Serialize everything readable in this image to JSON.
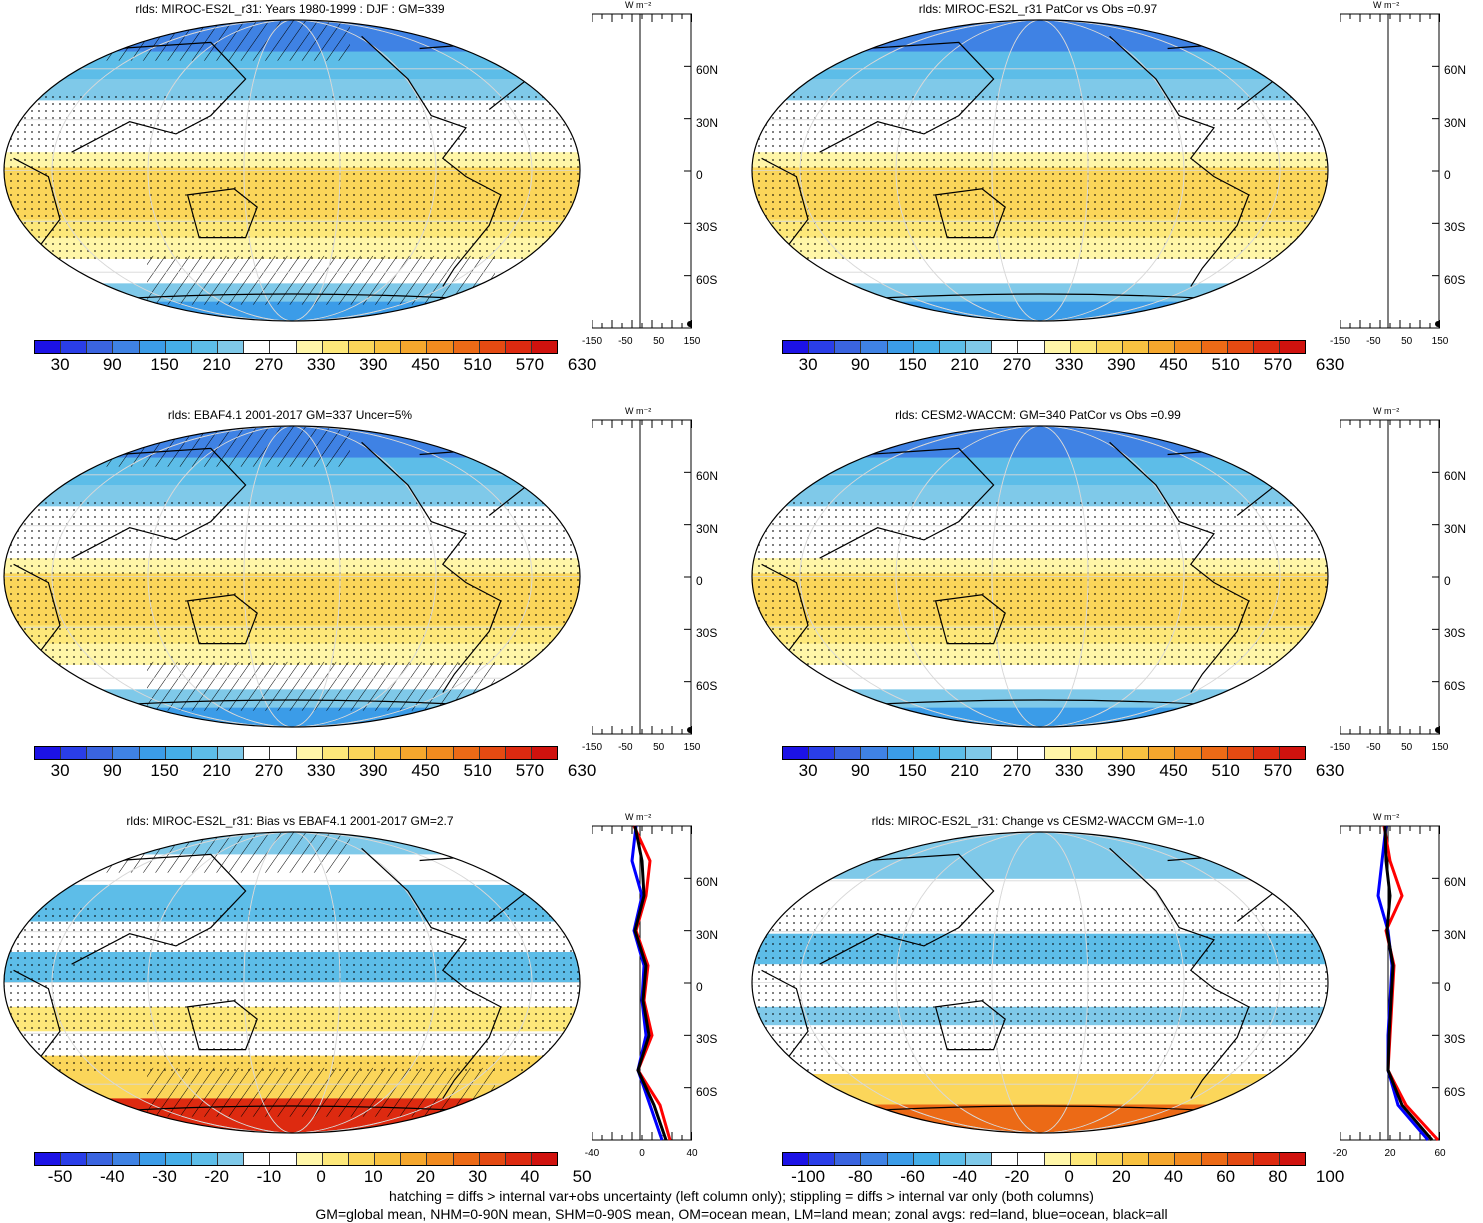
{
  "panels": [
    {
      "title": "rlds: MIROC-ES2L_r31: Years 1980-1999 : DJF : GM=339",
      "zonal": {
        "unit": "W m⁻²",
        "xticks": [
          "-150",
          "-50",
          "50",
          "150"
        ]
      },
      "colorbar": {
        "labels": [
          "30",
          "90",
          "150",
          "210",
          "270",
          "330",
          "390",
          "450",
          "510",
          "570",
          "630"
        ]
      }
    },
    {
      "title": "rlds: MIROC-ES2L_r31 PatCor vs Obs =0.97",
      "zonal": {
        "unit": "W m⁻²",
        "xticks": [
          "-150",
          "-50",
          "50",
          "150"
        ]
      },
      "colorbar": {
        "labels": [
          "30",
          "90",
          "150",
          "210",
          "270",
          "330",
          "390",
          "450",
          "510",
          "570",
          "630"
        ]
      }
    },
    {
      "title": "rlds: EBAF4.1 2001-2017 GM=337 Uncer=5%",
      "zonal": {
        "unit": "W m⁻²",
        "xticks": [
          "-150",
          "-50",
          "50",
          "150"
        ]
      },
      "colorbar": {
        "labels": [
          "30",
          "90",
          "150",
          "210",
          "270",
          "330",
          "390",
          "450",
          "510",
          "570",
          "630"
        ]
      }
    },
    {
      "title": "rlds: CESM2-WACCM: GM=340 PatCor vs Obs =0.99",
      "zonal": {
        "unit": "W m⁻²",
        "xticks": [
          "-150",
          "-50",
          "50",
          "150"
        ]
      },
      "colorbar": {
        "labels": [
          "30",
          "90",
          "150",
          "210",
          "270",
          "330",
          "390",
          "450",
          "510",
          "570",
          "630"
        ]
      }
    },
    {
      "title": "rlds: MIROC-ES2L_r31: Bias vs EBAF4.1 2001-2017 GM=2.7",
      "zonal": {
        "unit": "W m⁻²",
        "xticks": [
          "-40",
          "0",
          "40"
        ]
      },
      "colorbar": {
        "labels": [
          "-50",
          "-40",
          "-30",
          "-20",
          "-10",
          "0",
          "10",
          "20",
          "30",
          "40",
          "50"
        ]
      }
    },
    {
      "title": "rlds: MIROC-ES2L_r31: Change vs CESM2-WACCM GM=-1.0",
      "zonal": {
        "unit": "W m⁻²",
        "xticks": [
          "-20",
          "20",
          "60"
        ]
      },
      "colorbar": {
        "labels": [
          "-100",
          "-80",
          "-60",
          "-40",
          "-20",
          "0",
          "20",
          "40",
          "60",
          "80",
          "100"
        ]
      }
    }
  ],
  "lat_labels": [
    "60N",
    "30N",
    "0",
    "30S",
    "60S"
  ],
  "colors": {
    "palette": [
      "#1c12e6",
      "#2a3ee8",
      "#3a64e0",
      "#3f82e4",
      "#3b9ce8",
      "#45aee8",
      "#5dbde8",
      "#7fc9e9",
      "#ffffff",
      "#ffffff",
      "#fff6a8",
      "#fde87a",
      "#fbd65a",
      "#f8c241",
      "#f5a72d",
      "#f18b1f",
      "#ec6a16",
      "#e44a12",
      "#dd2a10",
      "#d0120e"
    ],
    "zonal_land": "#ff0000",
    "zonal_ocean": "#0000ff",
    "zonal_all": "#000000"
  },
  "footer": {
    "line1": "hatching = diffs > internal var+obs uncertainty (left column only); stippling = diffs > internal var only (both columns)",
    "line2": "GM=global mean, NHM=0-90N mean, SHM=0-90S mean, OM=ocean mean, LM=land mean; zonal avgs: red=land, blue=ocean, black=all"
  }
}
